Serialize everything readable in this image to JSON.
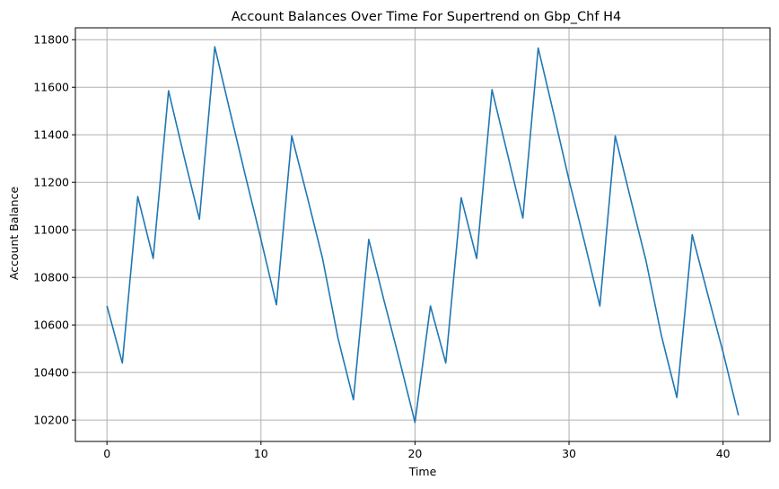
{
  "chart_data": {
    "type": "line",
    "title": "Account Balances Over Time For Supertrend on Gbp_Chf H4",
    "xlabel": "Time",
    "ylabel": "Account Balance",
    "xlim": [
      -2.05,
      43.05
    ],
    "ylim": [
      10110,
      11850
    ],
    "xticks": [
      0,
      10,
      20,
      30,
      40
    ],
    "yticks": [
      10200,
      10400,
      10600,
      10800,
      11000,
      11200,
      11400,
      11600,
      11800
    ],
    "grid": true,
    "series": [
      {
        "color": "#1f77b4",
        "x": [
          0,
          1,
          2,
          3,
          4,
          5,
          6,
          7,
          8,
          9,
          10,
          11,
          12,
          13,
          14,
          15,
          16,
          17,
          18,
          19,
          20,
          21,
          22,
          23,
          24,
          25,
          26,
          27,
          28,
          29,
          30,
          31,
          32,
          33,
          34,
          35,
          36,
          37,
          38,
          39,
          40,
          41
        ],
        "values": [
          10680,
          10440,
          11140,
          10880,
          11585,
          11310,
          11045,
          11770,
          11495,
          11225,
          10960,
          10685,
          11395,
          11140,
          10880,
          10545,
          10285,
          10960,
          10700,
          10450,
          10190,
          10680,
          10440,
          11135,
          10880,
          11590,
          11320,
          11050,
          11765,
          11490,
          11210,
          10950,
          10680,
          11395,
          11130,
          10870,
          10555,
          10295,
          10980,
          10730,
          10485,
          10220
        ]
      }
    ]
  }
}
